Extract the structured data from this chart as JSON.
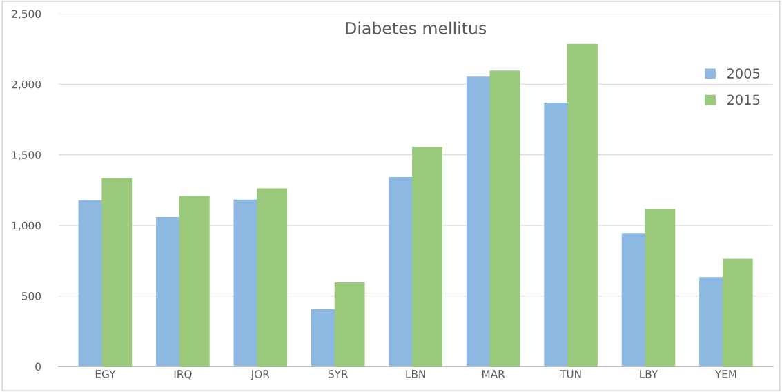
{
  "chart_data": {
    "type": "bar",
    "title": "Diabetes mellitus",
    "categories": [
      "EGY",
      "IRQ",
      "JOR",
      "SYR",
      "LBN",
      "MAR",
      "TUN",
      "LBY",
      "YEM"
    ],
    "series": [
      {
        "name": "2005",
        "color": "#8cb8e2",
        "values": [
          1178,
          1060,
          1183,
          407,
          1343,
          2054,
          1870,
          946,
          634
        ]
      },
      {
        "name": "2015",
        "color": "#9bc97b",
        "values": [
          1335,
          1208,
          1262,
          596,
          1557,
          2098,
          2286,
          1116,
          764
        ]
      }
    ],
    "ylim": [
      0,
      2500
    ],
    "yticks": [
      0,
      {
        "value": 500,
        "label": "500"
      },
      {
        "value": 1000,
        "label": "1,000"
      },
      {
        "value": 1500,
        "label": "1,500"
      },
      {
        "value": 2000,
        "label": "2,000"
      },
      {
        "value": 2500,
        "label": "2,500"
      }
    ],
    "grid": "y",
    "legend": "top right"
  }
}
